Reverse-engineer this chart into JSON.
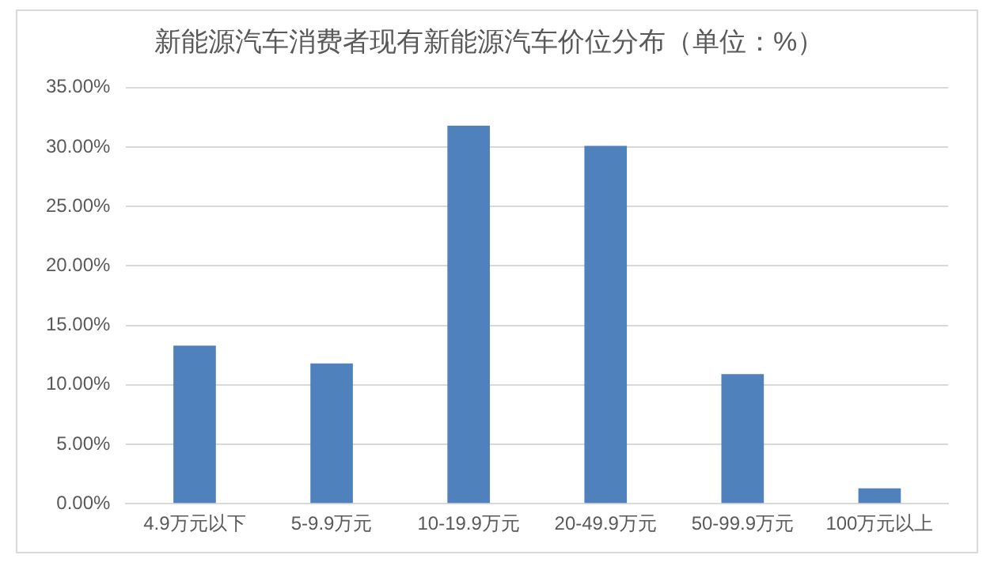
{
  "chart_data": {
    "type": "bar",
    "title": "新能源汽车消费者现有新能源汽车价位分布（单位：%）",
    "categories": [
      "4.9万元以下",
      "5-9.9万元",
      "10-19.9万元",
      "20-49.9万元",
      "50-99.9万元",
      "100万元以上"
    ],
    "values": [
      13.3,
      11.8,
      31.8,
      30.1,
      10.9,
      1.3
    ],
    "color": "#4f81bd",
    "ylim": [
      0,
      35
    ],
    "yticks": [
      {
        "value": 0,
        "label": "0.00%"
      },
      {
        "value": 5,
        "label": "5.00%"
      },
      {
        "value": 10,
        "label": "10.00%"
      },
      {
        "value": 15,
        "label": "15.00%"
      },
      {
        "value": 20,
        "label": "20.00%"
      },
      {
        "value": 25,
        "label": "25.00%"
      },
      {
        "value": 30,
        "label": "30.00%"
      },
      {
        "value": 35,
        "label": "35.00%"
      }
    ],
    "grid": "y"
  }
}
